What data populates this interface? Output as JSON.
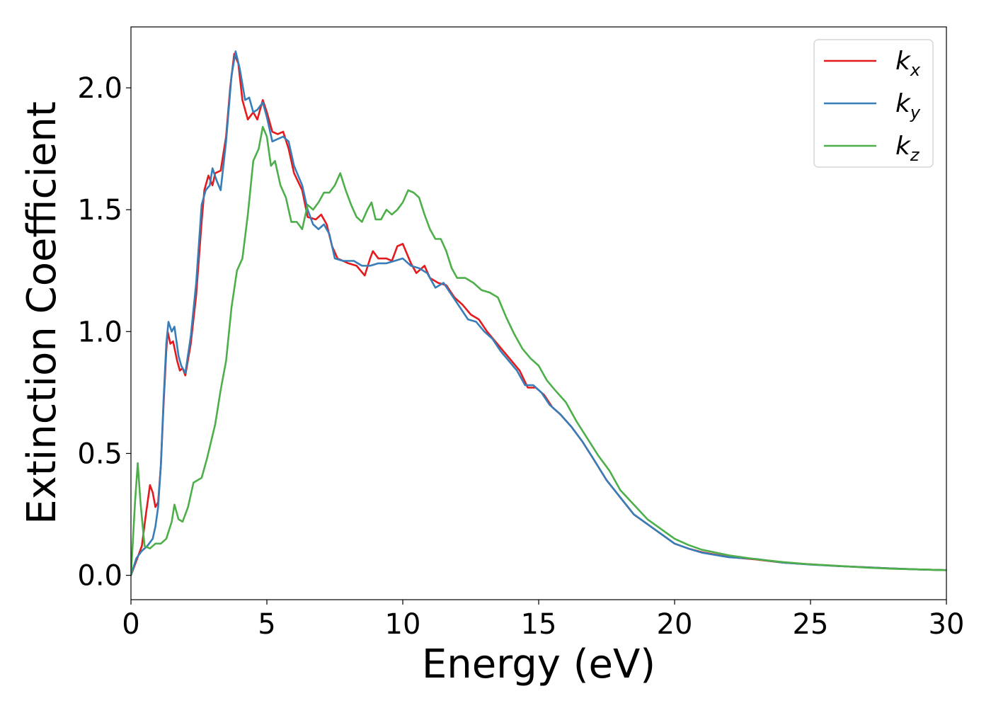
{
  "chart_data": {
    "type": "line",
    "title": "",
    "xlabel": "Energy (eV)",
    "ylabel": "Extinction Coefficient",
    "xlim": [
      0,
      30
    ],
    "ylim": [
      -0.1,
      2.25
    ],
    "xticks": [
      0,
      5,
      10,
      15,
      20,
      25,
      30
    ],
    "xtick_labels": [
      "0",
      "5",
      "10",
      "15",
      "20",
      "25",
      "30"
    ],
    "yticks": [
      0.0,
      0.5,
      1.0,
      1.5,
      2.0
    ],
    "ytick_labels": [
      "0.0",
      "0.5",
      "1.0",
      "1.5",
      "2.0"
    ],
    "grid": false,
    "legend_position": "top-right",
    "series": [
      {
        "name": "kx",
        "label_base": "k",
        "label_sub": "x",
        "color": "#e41a1c",
        "points": [
          [
            0,
            0.0
          ],
          [
            0.2,
            0.06
          ],
          [
            0.4,
            0.12
          ],
          [
            0.55,
            0.25
          ],
          [
            0.7,
            0.37
          ],
          [
            0.8,
            0.34
          ],
          [
            0.9,
            0.28
          ],
          [
            1.0,
            0.3
          ],
          [
            1.1,
            0.45
          ],
          [
            1.2,
            0.7
          ],
          [
            1.3,
            0.92
          ],
          [
            1.35,
            1.0
          ],
          [
            1.45,
            0.95
          ],
          [
            1.55,
            0.96
          ],
          [
            1.7,
            0.88
          ],
          [
            1.8,
            0.84
          ],
          [
            1.9,
            0.85
          ],
          [
            2.0,
            0.82
          ],
          [
            2.2,
            0.95
          ],
          [
            2.4,
            1.15
          ],
          [
            2.6,
            1.45
          ],
          [
            2.7,
            1.58
          ],
          [
            2.85,
            1.64
          ],
          [
            3.0,
            1.6
          ],
          [
            3.1,
            1.65
          ],
          [
            3.3,
            1.66
          ],
          [
            3.5,
            1.8
          ],
          [
            3.65,
            2.0
          ],
          [
            3.8,
            2.14
          ],
          [
            3.95,
            2.1
          ],
          [
            4.1,
            1.95
          ],
          [
            4.3,
            1.87
          ],
          [
            4.5,
            1.9
          ],
          [
            4.65,
            1.87
          ],
          [
            4.85,
            1.95
          ],
          [
            5.0,
            1.9
          ],
          [
            5.2,
            1.82
          ],
          [
            5.4,
            1.81
          ],
          [
            5.6,
            1.82
          ],
          [
            5.8,
            1.75
          ],
          [
            6.0,
            1.65
          ],
          [
            6.3,
            1.58
          ],
          [
            6.5,
            1.47
          ],
          [
            6.8,
            1.46
          ],
          [
            7.0,
            1.48
          ],
          [
            7.2,
            1.44
          ],
          [
            7.4,
            1.35
          ],
          [
            7.6,
            1.3
          ],
          [
            7.8,
            1.29
          ],
          [
            8.0,
            1.28
          ],
          [
            8.3,
            1.27
          ],
          [
            8.6,
            1.23
          ],
          [
            8.8,
            1.3
          ],
          [
            8.9,
            1.33
          ],
          [
            9.1,
            1.3
          ],
          [
            9.4,
            1.3
          ],
          [
            9.6,
            1.29
          ],
          [
            9.8,
            1.35
          ],
          [
            10.0,
            1.36
          ],
          [
            10.3,
            1.28
          ],
          [
            10.5,
            1.24
          ],
          [
            10.8,
            1.27
          ],
          [
            11.0,
            1.22
          ],
          [
            11.3,
            1.2
          ],
          [
            11.6,
            1.19
          ],
          [
            11.9,
            1.14
          ],
          [
            12.2,
            1.11
          ],
          [
            12.5,
            1.07
          ],
          [
            12.8,
            1.05
          ],
          [
            13.1,
            1.0
          ],
          [
            13.4,
            0.96
          ],
          [
            13.7,
            0.92
          ],
          [
            14.0,
            0.88
          ],
          [
            14.3,
            0.84
          ],
          [
            14.6,
            0.77
          ],
          [
            14.9,
            0.77
          ],
          [
            15.2,
            0.74
          ],
          [
            15.5,
            0.69
          ],
          [
            15.8,
            0.66
          ],
          [
            16.2,
            0.61
          ],
          [
            16.6,
            0.55
          ],
          [
            17.0,
            0.48
          ],
          [
            17.5,
            0.39
          ],
          [
            18.0,
            0.32
          ],
          [
            18.5,
            0.25
          ],
          [
            19.0,
            0.21
          ],
          [
            19.5,
            0.17
          ],
          [
            20.0,
            0.13
          ],
          [
            20.5,
            0.11
          ],
          [
            21.0,
            0.095
          ],
          [
            22.0,
            0.075
          ],
          [
            23.0,
            0.065
          ],
          [
            24.0,
            0.052
          ],
          [
            25.0,
            0.045
          ],
          [
            26.0,
            0.038
          ],
          [
            27.0,
            0.033
          ],
          [
            28.0,
            0.028
          ],
          [
            29.0,
            0.024
          ],
          [
            30.0,
            0.021
          ]
        ]
      },
      {
        "name": "ky",
        "label_base": "k",
        "label_sub": "y",
        "color": "#377eb8",
        "points": [
          [
            0,
            0.0
          ],
          [
            0.2,
            0.07
          ],
          [
            0.4,
            0.1
          ],
          [
            0.6,
            0.12
          ],
          [
            0.8,
            0.15
          ],
          [
            0.9,
            0.2
          ],
          [
            1.0,
            0.28
          ],
          [
            1.1,
            0.45
          ],
          [
            1.2,
            0.72
          ],
          [
            1.3,
            0.95
          ],
          [
            1.38,
            1.04
          ],
          [
            1.5,
            1.0
          ],
          [
            1.6,
            1.02
          ],
          [
            1.75,
            0.9
          ],
          [
            1.85,
            0.86
          ],
          [
            2.0,
            0.83
          ],
          [
            2.2,
            0.98
          ],
          [
            2.4,
            1.2
          ],
          [
            2.6,
            1.52
          ],
          [
            2.75,
            1.58
          ],
          [
            2.9,
            1.6
          ],
          [
            3.0,
            1.67
          ],
          [
            3.15,
            1.62
          ],
          [
            3.3,
            1.58
          ],
          [
            3.5,
            1.78
          ],
          [
            3.7,
            2.05
          ],
          [
            3.85,
            2.15
          ],
          [
            4.0,
            2.08
          ],
          [
            4.2,
            1.95
          ],
          [
            4.35,
            1.96
          ],
          [
            4.5,
            1.9
          ],
          [
            4.65,
            1.91
          ],
          [
            4.85,
            1.94
          ],
          [
            5.0,
            1.88
          ],
          [
            5.2,
            1.78
          ],
          [
            5.4,
            1.79
          ],
          [
            5.6,
            1.8
          ],
          [
            5.8,
            1.78
          ],
          [
            6.0,
            1.68
          ],
          [
            6.3,
            1.6
          ],
          [
            6.5,
            1.5
          ],
          [
            6.7,
            1.44
          ],
          [
            6.9,
            1.42
          ],
          [
            7.1,
            1.44
          ],
          [
            7.3,
            1.4
          ],
          [
            7.5,
            1.3
          ],
          [
            7.8,
            1.29
          ],
          [
            8.2,
            1.29
          ],
          [
            8.5,
            1.27
          ],
          [
            8.8,
            1.27
          ],
          [
            9.1,
            1.28
          ],
          [
            9.4,
            1.28
          ],
          [
            9.7,
            1.29
          ],
          [
            10.0,
            1.3
          ],
          [
            10.3,
            1.27
          ],
          [
            10.6,
            1.26
          ],
          [
            10.9,
            1.24
          ],
          [
            11.2,
            1.18
          ],
          [
            11.5,
            1.2
          ],
          [
            11.8,
            1.15
          ],
          [
            12.1,
            1.1
          ],
          [
            12.4,
            1.05
          ],
          [
            12.7,
            1.04
          ],
          [
            13.0,
            1.0
          ],
          [
            13.3,
            0.97
          ],
          [
            13.6,
            0.92
          ],
          [
            13.9,
            0.88
          ],
          [
            14.2,
            0.84
          ],
          [
            14.5,
            0.78
          ],
          [
            14.8,
            0.78
          ],
          [
            15.1,
            0.75
          ],
          [
            15.4,
            0.7
          ],
          [
            15.8,
            0.66
          ],
          [
            16.2,
            0.61
          ],
          [
            16.6,
            0.55
          ],
          [
            17.0,
            0.48
          ],
          [
            17.5,
            0.39
          ],
          [
            18.0,
            0.32
          ],
          [
            18.5,
            0.25
          ],
          [
            19.0,
            0.21
          ],
          [
            19.5,
            0.17
          ],
          [
            20.0,
            0.13
          ],
          [
            20.5,
            0.11
          ],
          [
            21.0,
            0.093
          ],
          [
            22.0,
            0.074
          ],
          [
            23.0,
            0.067
          ],
          [
            24.0,
            0.052
          ],
          [
            25.0,
            0.044
          ],
          [
            26.0,
            0.038
          ],
          [
            27.0,
            0.033
          ],
          [
            28.0,
            0.028
          ],
          [
            29.0,
            0.024
          ],
          [
            30.0,
            0.021
          ]
        ]
      },
      {
        "name": "kz",
        "label_base": "k",
        "label_sub": "z",
        "color": "#4daf4a",
        "points": [
          [
            0,
            0.0
          ],
          [
            0.15,
            0.3
          ],
          [
            0.25,
            0.46
          ],
          [
            0.35,
            0.3
          ],
          [
            0.5,
            0.12
          ],
          [
            0.7,
            0.11
          ],
          [
            0.9,
            0.13
          ],
          [
            1.1,
            0.13
          ],
          [
            1.3,
            0.15
          ],
          [
            1.5,
            0.22
          ],
          [
            1.6,
            0.29
          ],
          [
            1.75,
            0.23
          ],
          [
            1.9,
            0.22
          ],
          [
            2.1,
            0.28
          ],
          [
            2.3,
            0.38
          ],
          [
            2.6,
            0.4
          ],
          [
            2.8,
            0.48
          ],
          [
            3.1,
            0.62
          ],
          [
            3.3,
            0.76
          ],
          [
            3.5,
            0.88
          ],
          [
            3.7,
            1.1
          ],
          [
            3.9,
            1.25
          ],
          [
            4.1,
            1.3
          ],
          [
            4.3,
            1.48
          ],
          [
            4.5,
            1.7
          ],
          [
            4.7,
            1.75
          ],
          [
            4.85,
            1.84
          ],
          [
            5.0,
            1.8
          ],
          [
            5.15,
            1.68
          ],
          [
            5.3,
            1.7
          ],
          [
            5.5,
            1.6
          ],
          [
            5.7,
            1.55
          ],
          [
            5.9,
            1.45
          ],
          [
            6.1,
            1.45
          ],
          [
            6.3,
            1.42
          ],
          [
            6.5,
            1.52
          ],
          [
            6.7,
            1.5
          ],
          [
            6.9,
            1.53
          ],
          [
            7.1,
            1.57
          ],
          [
            7.3,
            1.57
          ],
          [
            7.5,
            1.6
          ],
          [
            7.7,
            1.65
          ],
          [
            7.9,
            1.58
          ],
          [
            8.1,
            1.52
          ],
          [
            8.3,
            1.47
          ],
          [
            8.5,
            1.45
          ],
          [
            8.7,
            1.5
          ],
          [
            8.85,
            1.53
          ],
          [
            9.0,
            1.46
          ],
          [
            9.2,
            1.46
          ],
          [
            9.4,
            1.5
          ],
          [
            9.6,
            1.48
          ],
          [
            9.8,
            1.5
          ],
          [
            10.0,
            1.53
          ],
          [
            10.2,
            1.58
          ],
          [
            10.4,
            1.57
          ],
          [
            10.6,
            1.55
          ],
          [
            10.8,
            1.48
          ],
          [
            11.0,
            1.42
          ],
          [
            11.2,
            1.38
          ],
          [
            11.4,
            1.38
          ],
          [
            11.6,
            1.33
          ],
          [
            11.8,
            1.26
          ],
          [
            12.0,
            1.22
          ],
          [
            12.3,
            1.22
          ],
          [
            12.6,
            1.2
          ],
          [
            12.9,
            1.17
          ],
          [
            13.2,
            1.16
          ],
          [
            13.5,
            1.14
          ],
          [
            13.8,
            1.06
          ],
          [
            14.1,
            0.99
          ],
          [
            14.4,
            0.93
          ],
          [
            14.7,
            0.89
          ],
          [
            15.0,
            0.86
          ],
          [
            15.3,
            0.8
          ],
          [
            15.6,
            0.76
          ],
          [
            16.0,
            0.71
          ],
          [
            16.4,
            0.63
          ],
          [
            16.8,
            0.56
          ],
          [
            17.2,
            0.49
          ],
          [
            17.6,
            0.43
          ],
          [
            18.0,
            0.35
          ],
          [
            18.5,
            0.29
          ],
          [
            19.0,
            0.23
          ],
          [
            19.5,
            0.19
          ],
          [
            20.0,
            0.15
          ],
          [
            20.5,
            0.125
          ],
          [
            21.0,
            0.105
          ],
          [
            22.0,
            0.082
          ],
          [
            23.0,
            0.066
          ],
          [
            24.0,
            0.054
          ],
          [
            25.0,
            0.045
          ],
          [
            26.0,
            0.039
          ],
          [
            27.0,
            0.032
          ],
          [
            28.0,
            0.027
          ],
          [
            29.0,
            0.024
          ],
          [
            30.0,
            0.021
          ]
        ]
      }
    ]
  }
}
